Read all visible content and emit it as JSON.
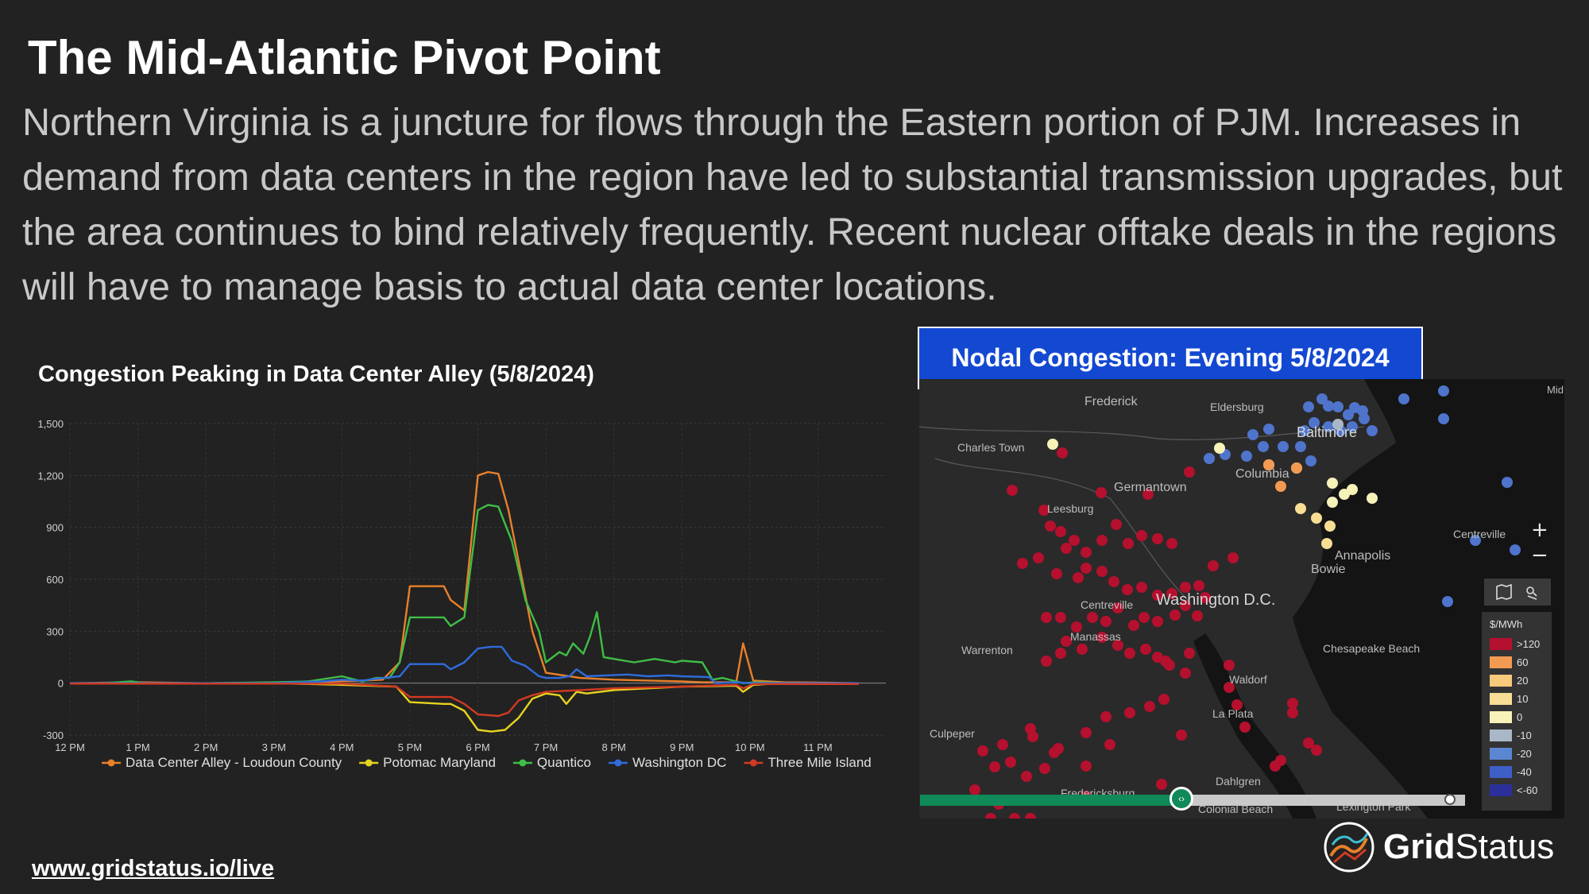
{
  "slide": {
    "title": "The Mid-Atlantic Pivot Point",
    "body": "Northern Virginia is a juncture for flows through the Eastern portion of PJM. Increases in demand from data centers in the region have led to substantial transmission upgrades, but the area continues to bind relatively frequently. Recent nuclear offtake deals in the regions will have to manage basis to actual data center locations.",
    "link": "www.gridstatus.io/live",
    "brand_bold": "Grid",
    "brand_rest": "Status"
  },
  "chart_data": {
    "type": "line",
    "title": "Congestion Peaking in Data Center Alley (5/8/2024)",
    "ylim": [
      -300,
      1500
    ],
    "yticks": [
      "1,500",
      "1,200",
      "900",
      "600",
      "300",
      "0",
      "-300"
    ],
    "ytick_values": [
      1500,
      1200,
      900,
      600,
      300,
      0,
      -300
    ],
    "xlim": [
      12,
      24
    ],
    "xticks": [
      "12 PM",
      "1 PM",
      "2 PM",
      "3 PM",
      "4 PM",
      "5 PM",
      "6 PM",
      "7 PM",
      "8 PM",
      "9 PM",
      "10 PM",
      "11 PM"
    ],
    "xtick_values": [
      12,
      13,
      14,
      15,
      16,
      17,
      18,
      19,
      20,
      21,
      22,
      23
    ],
    "legend_position": "bottom",
    "grid": true,
    "series": [
      {
        "name": "Data Center Alley - Loudoun County",
        "color": "#e8802a",
        "points": [
          [
            12,
            0
          ],
          [
            13,
            5
          ],
          [
            14,
            0
          ],
          [
            15,
            3
          ],
          [
            15.8,
            8
          ],
          [
            16.3,
            15
          ],
          [
            16.6,
            20
          ],
          [
            16.85,
            120
          ],
          [
            17,
            560
          ],
          [
            17.5,
            560
          ],
          [
            17.6,
            480
          ],
          [
            17.8,
            420
          ],
          [
            18,
            1200
          ],
          [
            18.15,
            1220
          ],
          [
            18.3,
            1210
          ],
          [
            18.45,
            1000
          ],
          [
            18.6,
            700
          ],
          [
            18.8,
            300
          ],
          [
            19,
            60
          ],
          [
            19.5,
            30
          ],
          [
            20,
            20
          ],
          [
            20.5,
            15
          ],
          [
            21,
            10
          ],
          [
            21.3,
            5
          ],
          [
            21.8,
            5
          ],
          [
            21.9,
            230
          ],
          [
            22.05,
            15
          ],
          [
            22.5,
            5
          ],
          [
            23,
            3
          ],
          [
            23.6,
            0
          ]
        ]
      },
      {
        "name": "Potomac Maryland",
        "color": "#e6d320",
        "points": [
          [
            12,
            0
          ],
          [
            13,
            0
          ],
          [
            14,
            0
          ],
          [
            15,
            0
          ],
          [
            16,
            -10
          ],
          [
            16.8,
            -20
          ],
          [
            17,
            -110
          ],
          [
            17.5,
            -120
          ],
          [
            17.6,
            -120
          ],
          [
            17.8,
            -160
          ],
          [
            18,
            -270
          ],
          [
            18.2,
            -280
          ],
          [
            18.4,
            -270
          ],
          [
            18.6,
            -200
          ],
          [
            18.8,
            -90
          ],
          [
            19,
            -60
          ],
          [
            19.2,
            -70
          ],
          [
            19.3,
            -120
          ],
          [
            19.45,
            -50
          ],
          [
            19.6,
            -60
          ],
          [
            20,
            -40
          ],
          [
            20.5,
            -30
          ],
          [
            21,
            -20
          ],
          [
            21.8,
            -15
          ],
          [
            21.9,
            -50
          ],
          [
            22.05,
            -10
          ],
          [
            22.5,
            0
          ],
          [
            23,
            0
          ],
          [
            23.6,
            0
          ]
        ]
      },
      {
        "name": "Quantico",
        "color": "#3fbe46",
        "points": [
          [
            12,
            0
          ],
          [
            12.5,
            0
          ],
          [
            12.9,
            10
          ],
          [
            13.1,
            0
          ],
          [
            14,
            0
          ],
          [
            15,
            5
          ],
          [
            15.5,
            10
          ],
          [
            16,
            40
          ],
          [
            16.3,
            10
          ],
          [
            16.5,
            30
          ],
          [
            16.7,
            30
          ],
          [
            16.85,
            120
          ],
          [
            17,
            380
          ],
          [
            17.5,
            380
          ],
          [
            17.6,
            330
          ],
          [
            17.8,
            380
          ],
          [
            18,
            1000
          ],
          [
            18.15,
            1030
          ],
          [
            18.3,
            1020
          ],
          [
            18.5,
            820
          ],
          [
            18.7,
            480
          ],
          [
            18.9,
            300
          ],
          [
            19,
            120
          ],
          [
            19.2,
            180
          ],
          [
            19.3,
            160
          ],
          [
            19.4,
            230
          ],
          [
            19.55,
            170
          ],
          [
            19.65,
            270
          ],
          [
            19.75,
            410
          ],
          [
            19.85,
            150
          ],
          [
            20,
            140
          ],
          [
            20.3,
            120
          ],
          [
            20.6,
            140
          ],
          [
            20.9,
            120
          ],
          [
            21,
            130
          ],
          [
            21.3,
            120
          ],
          [
            21.45,
            20
          ],
          [
            21.6,
            30
          ],
          [
            21.8,
            10
          ],
          [
            21.9,
            0
          ],
          [
            22.1,
            5
          ],
          [
            22.5,
            0
          ],
          [
            23,
            0
          ],
          [
            23.6,
            0
          ]
        ]
      },
      {
        "name": "Washington DC",
        "color": "#2f6cdc",
        "points": [
          [
            12,
            0
          ],
          [
            13,
            0
          ],
          [
            14,
            0
          ],
          [
            15,
            0
          ],
          [
            15.7,
            10
          ],
          [
            16,
            20
          ],
          [
            16.3,
            15
          ],
          [
            16.5,
            25
          ],
          [
            16.85,
            40
          ],
          [
            17,
            110
          ],
          [
            17.5,
            110
          ],
          [
            17.6,
            80
          ],
          [
            17.8,
            120
          ],
          [
            18,
            200
          ],
          [
            18.2,
            210
          ],
          [
            18.35,
            210
          ],
          [
            18.5,
            130
          ],
          [
            18.7,
            100
          ],
          [
            18.9,
            40
          ],
          [
            19,
            30
          ],
          [
            19.2,
            30
          ],
          [
            19.35,
            40
          ],
          [
            19.45,
            80
          ],
          [
            19.6,
            40
          ],
          [
            19.9,
            45
          ],
          [
            20.2,
            50
          ],
          [
            20.5,
            40
          ],
          [
            20.8,
            45
          ],
          [
            21,
            40
          ],
          [
            21.4,
            35
          ],
          [
            21.5,
            0
          ],
          [
            21.8,
            5
          ],
          [
            22,
            0
          ],
          [
            22.5,
            0
          ],
          [
            23.6,
            0
          ]
        ]
      },
      {
        "name": "Three Mile Island",
        "color": "#d23a22",
        "points": [
          [
            12,
            -3
          ],
          [
            13,
            -3
          ],
          [
            14,
            -3
          ],
          [
            15,
            -3
          ],
          [
            16,
            -3
          ],
          [
            16.8,
            -20
          ],
          [
            17,
            -80
          ],
          [
            17.5,
            -80
          ],
          [
            17.6,
            -80
          ],
          [
            17.8,
            -120
          ],
          [
            18,
            -180
          ],
          [
            18.3,
            -190
          ],
          [
            18.45,
            -170
          ],
          [
            18.6,
            -100
          ],
          [
            18.8,
            -70
          ],
          [
            19,
            -50
          ],
          [
            19.5,
            -40
          ],
          [
            20,
            -30
          ],
          [
            21,
            -20
          ],
          [
            21.8,
            -10
          ],
          [
            21.9,
            -30
          ],
          [
            22.05,
            -5
          ],
          [
            22.5,
            -5
          ],
          [
            23,
            -5
          ],
          [
            23.6,
            -5
          ]
        ]
      }
    ]
  },
  "map": {
    "header": "Nodal Congestion: Evening 5/8/2024",
    "places": [
      "Frederick",
      "Eldersburg",
      "Charles Town",
      "Germantown",
      "Leesburg",
      "Columbia",
      "Bowie",
      "Annapolis",
      "Centreville",
      "Chesapeake Beach",
      "Waldorf",
      "La Plata",
      "Culpeper",
      "Dahlgren",
      "Colonial Beach",
      "Lexington Park",
      "Washington D.C.",
      "Baltimore",
      "Centreville",
      "Manassas",
      "Warrenton",
      "Fredericksburg",
      "Mid"
    ],
    "legend_title": "$/MWh",
    "legend": [
      {
        "label": ">120",
        "color": "#b5102e"
      },
      {
        "label": "60",
        "color": "#f39a52"
      },
      {
        "label": "20",
        "color": "#f7c97a"
      },
      {
        "label": "10",
        "color": "#f8de94"
      },
      {
        "label": "0",
        "color": "#f6f2b8"
      },
      {
        "label": "-10",
        "color": "#a9b8c6"
      },
      {
        "label": "-20",
        "color": "#5b86d2"
      },
      {
        "label": "-40",
        "color": "#3d5fc6"
      },
      {
        "label": "<-60",
        "color": "#2b2f9a"
      }
    ],
    "zoom_in": "+",
    "zoom_out": "−",
    "slider_position": 0.45
  }
}
